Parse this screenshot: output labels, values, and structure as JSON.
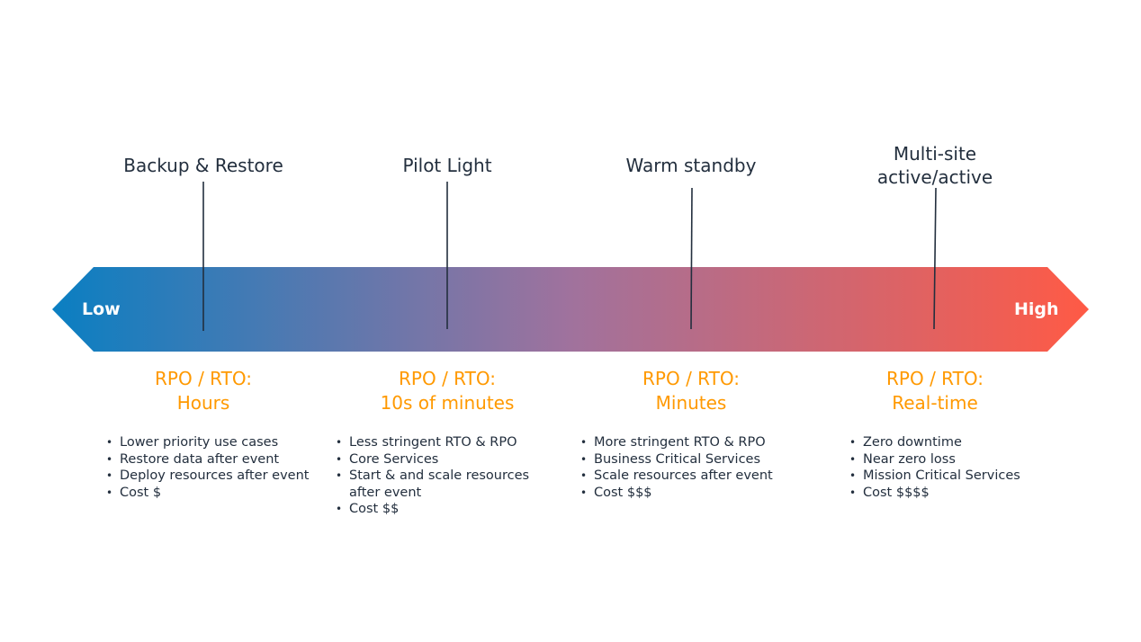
{
  "arrow": {
    "low_label": "Low",
    "high_label": "High",
    "gradient_start": "#0a7fc2",
    "gradient_mid": "#a0729d",
    "gradient_end": "#ff5a45"
  },
  "strategies": [
    {
      "title": "Backup & Restore",
      "rpo_label": "RPO / RTO:",
      "rpo_value": "Hours",
      "bullets": [
        "Lower priority use cases",
        "Restore data after event",
        "Deploy resources after event",
        "Cost $"
      ]
    },
    {
      "title": "Pilot Light",
      "rpo_label": "RPO / RTO:",
      "rpo_value": "10s of minutes",
      "bullets": [
        "Less stringent RTO & RPO",
        "Core Services",
        "Start & and scale resources after event",
        "Cost $$"
      ]
    },
    {
      "title": "Warm standby",
      "rpo_label": "RPO / RTO:",
      "rpo_value": "Minutes",
      "bullets": [
        "More stringent RTO & RPO",
        "Business Critical Services",
        "Scale resources after event",
        "Cost $$$"
      ]
    },
    {
      "title": "Multi-site\nactive/active",
      "rpo_label": "RPO / RTO:",
      "rpo_value": "Real-time",
      "bullets": [
        "Zero downtime",
        "Near zero loss",
        "Mission Critical Services",
        "Cost $$$$"
      ]
    }
  ],
  "colors": {
    "title_text": "#232f3e",
    "rpo_text": "#ff9900",
    "marker_line": "#232f3e"
  }
}
